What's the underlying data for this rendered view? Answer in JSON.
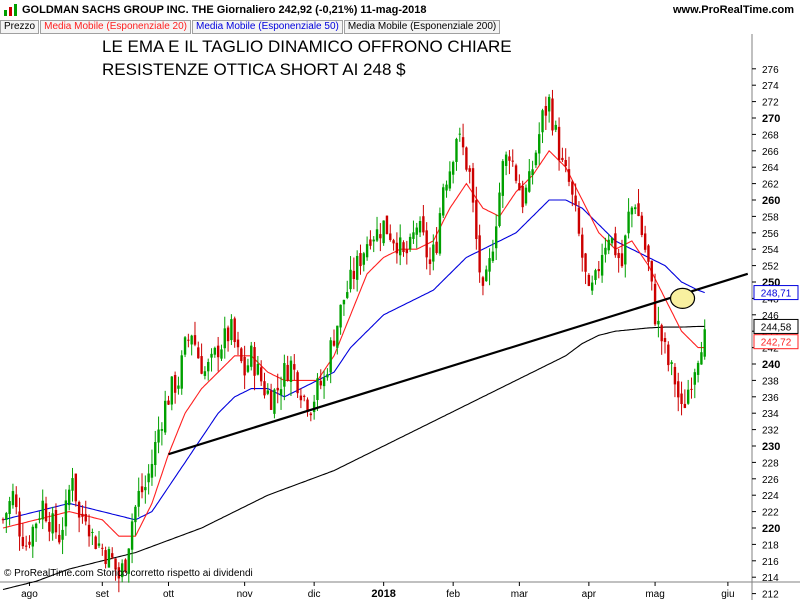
{
  "header": {
    "title": "GOLDMAN SACHS GROUP INC. THE   Giornaliero   242,92 (-0,21%)   11-mag-2018",
    "site": "www.ProRealTime.com"
  },
  "legend": {
    "price": "Prezzo",
    "ema20": "Media Mobile (Esponenziale 20)",
    "ema50": "Media Mobile (Esponenziale 50)",
    "ema200": "Media Mobile (Esponenziale 200)"
  },
  "annotation": {
    "line1": "LE EMA E  IL TAGLIO DINAMICO OFFRONO CHIARE",
    "line2": "RESISTENZE OTTICA SHORT AI 248 $"
  },
  "footer": "© ProRealTime.com  Storico corretto rispetto ai dividendi",
  "colors": {
    "up": "#00a000",
    "down": "#cc0000",
    "ema20": "#ff2020",
    "ema50": "#0000dd",
    "ema200": "#000000",
    "trendline": "#000000",
    "circle_fill": "#f8f0a0"
  },
  "chart_data": {
    "type": "candlestick",
    "y_range": [
      211,
      278
    ],
    "y_ticks": [
      212,
      214,
      216,
      218,
      220,
      222,
      224,
      226,
      228,
      230,
      232,
      234,
      236,
      238,
      240,
      242,
      244,
      246,
      248,
      250,
      252,
      254,
      256,
      258,
      260,
      262,
      264,
      266,
      268,
      270,
      272,
      274,
      276
    ],
    "y_ticks_bold": [
      220,
      230,
      240,
      250,
      260,
      270
    ],
    "x_ticks": [
      {
        "label": "ago",
        "day": 8,
        "bold": false
      },
      {
        "label": "set",
        "day": 30,
        "bold": false
      },
      {
        "label": "ott",
        "day": 50,
        "bold": false
      },
      {
        "label": "nov",
        "day": 73,
        "bold": false
      },
      {
        "label": "dic",
        "day": 94,
        "bold": false
      },
      {
        "label": "2018",
        "day": 115,
        "bold": true
      },
      {
        "label": "feb",
        "day": 136,
        "bold": false
      },
      {
        "label": "mar",
        "day": 156,
        "bold": false
      },
      {
        "label": "apr",
        "day": 177,
        "bold": false
      },
      {
        "label": "mag",
        "day": 197,
        "bold": false
      },
      {
        "label": "giu",
        "day": 219,
        "bold": false
      }
    ],
    "x_day_range": [
      0,
      225
    ],
    "price_keypoints": [
      [
        0,
        221
      ],
      [
        3,
        224
      ],
      [
        5,
        220
      ],
      [
        7,
        218
      ],
      [
        10,
        221
      ],
      [
        12,
        223
      ],
      [
        14,
        221
      ],
      [
        17,
        219
      ],
      [
        19,
        222
      ],
      [
        21,
        227
      ],
      [
        23,
        221
      ],
      [
        25,
        222
      ],
      [
        27,
        219
      ],
      [
        29,
        218
      ],
      [
        31,
        217
      ],
      [
        33,
        216
      ],
      [
        35,
        214
      ],
      [
        37,
        216
      ],
      [
        39,
        221
      ],
      [
        41,
        224
      ],
      [
        43,
        225
      ],
      [
        45,
        228
      ],
      [
        47,
        232
      ],
      [
        49,
        235
      ],
      [
        51,
        237
      ],
      [
        53,
        238
      ],
      [
        55,
        242
      ],
      [
        57,
        244
      ],
      [
        59,
        241
      ],
      [
        61,
        239
      ],
      [
        63,
        240
      ],
      [
        65,
        242
      ],
      [
        67,
        243
      ],
      [
        69,
        244
      ],
      [
        71,
        241
      ],
      [
        73,
        239
      ],
      [
        75,
        241
      ],
      [
        77,
        239
      ],
      [
        79,
        237
      ],
      [
        81,
        236
      ],
      [
        83,
        237
      ],
      [
        85,
        239
      ],
      [
        87,
        240
      ],
      [
        89,
        238
      ],
      [
        91,
        236
      ],
      [
        93,
        235
      ],
      [
        95,
        237
      ],
      [
        97,
        238
      ],
      [
        99,
        242
      ],
      [
        101,
        245
      ],
      [
        103,
        248
      ],
      [
        105,
        250
      ],
      [
        107,
        252
      ],
      [
        109,
        254
      ],
      [
        111,
        256
      ],
      [
        113,
        256
      ],
      [
        115,
        257
      ],
      [
        117,
        256
      ],
      [
        119,
        255
      ],
      [
        121,
        253
      ],
      [
        123,
        254
      ],
      [
        125,
        257
      ],
      [
        127,
        255
      ],
      [
        129,
        252
      ],
      [
        131,
        255
      ],
      [
        133,
        262
      ],
      [
        135,
        264
      ],
      [
        137,
        268
      ],
      [
        139,
        266
      ],
      [
        141,
        263
      ],
      [
        143,
        255
      ],
      [
        145,
        248
      ],
      [
        147,
        252
      ],
      [
        149,
        258
      ],
      [
        151,
        264
      ],
      [
        153,
        266
      ],
      [
        155,
        263
      ],
      [
        157,
        260
      ],
      [
        159,
        262
      ],
      [
        161,
        266
      ],
      [
        163,
        270
      ],
      [
        165,
        272
      ],
      [
        167,
        268
      ],
      [
        169,
        264
      ],
      [
        171,
        262
      ],
      [
        173,
        258
      ],
      [
        175,
        253
      ],
      [
        177,
        248
      ],
      [
        179,
        250
      ],
      [
        181,
        254
      ],
      [
        183,
        256
      ],
      [
        185,
        254
      ],
      [
        187,
        252
      ],
      [
        189,
        258
      ],
      [
        191,
        260
      ],
      [
        193,
        256
      ],
      [
        195,
        252
      ],
      [
        197,
        246
      ],
      [
        199,
        243
      ],
      [
        201,
        240
      ],
      [
        203,
        238
      ],
      [
        205,
        234
      ],
      [
        207,
        237
      ],
      [
        209,
        240
      ],
      [
        211,
        243
      ],
      [
        212,
        243
      ]
    ],
    "ema20_keypoints": [
      [
        0,
        220
      ],
      [
        10,
        221
      ],
      [
        20,
        222
      ],
      [
        30,
        221
      ],
      [
        35,
        219
      ],
      [
        40,
        219
      ],
      [
        45,
        223
      ],
      [
        50,
        229
      ],
      [
        55,
        234
      ],
      [
        60,
        237
      ],
      [
        65,
        239
      ],
      [
        70,
        241
      ],
      [
        75,
        241
      ],
      [
        80,
        239
      ],
      [
        85,
        238
      ],
      [
        90,
        238
      ],
      [
        95,
        238
      ],
      [
        100,
        241
      ],
      [
        105,
        246
      ],
      [
        110,
        251
      ],
      [
        115,
        253
      ],
      [
        120,
        254
      ],
      [
        125,
        254
      ],
      [
        130,
        255
      ],
      [
        135,
        259
      ],
      [
        140,
        262
      ],
      [
        145,
        259
      ],
      [
        150,
        258
      ],
      [
        155,
        261
      ],
      [
        160,
        263
      ],
      [
        165,
        266
      ],
      [
        170,
        264
      ],
      [
        175,
        260
      ],
      [
        180,
        256
      ],
      [
        185,
        254
      ],
      [
        190,
        255
      ],
      [
        195,
        252
      ],
      [
        200,
        248
      ],
      [
        205,
        244
      ],
      [
        210,
        242
      ],
      [
        212,
        242
      ]
    ],
    "ema50_keypoints": [
      [
        0,
        221
      ],
      [
        10,
        222
      ],
      [
        20,
        223
      ],
      [
        30,
        222
      ],
      [
        40,
        221
      ],
      [
        45,
        222
      ],
      [
        50,
        225
      ],
      [
        55,
        228
      ],
      [
        60,
        231
      ],
      [
        65,
        234
      ],
      [
        70,
        236
      ],
      [
        75,
        237
      ],
      [
        80,
        237
      ],
      [
        85,
        236
      ],
      [
        90,
        237
      ],
      [
        95,
        238
      ],
      [
        100,
        239
      ],
      [
        105,
        242
      ],
      [
        110,
        244
      ],
      [
        115,
        246
      ],
      [
        120,
        247
      ],
      [
        125,
        248
      ],
      [
        130,
        249
      ],
      [
        135,
        251
      ],
      [
        140,
        253
      ],
      [
        145,
        254
      ],
      [
        150,
        255
      ],
      [
        155,
        256
      ],
      [
        160,
        258
      ],
      [
        165,
        260
      ],
      [
        170,
        260
      ],
      [
        175,
        259
      ],
      [
        180,
        257
      ],
      [
        185,
        255
      ],
      [
        190,
        254
      ],
      [
        195,
        253
      ],
      [
        200,
        252
      ],
      [
        205,
        250
      ],
      [
        210,
        249
      ],
      [
        212,
        248.71
      ]
    ],
    "ema200_keypoints": [
      [
        0,
        212.5
      ],
      [
        10,
        213.5
      ],
      [
        20,
        215
      ],
      [
        30,
        216
      ],
      [
        40,
        217
      ],
      [
        50,
        218.5
      ],
      [
        60,
        220
      ],
      [
        70,
        222
      ],
      [
        80,
        224
      ],
      [
        90,
        225.5
      ],
      [
        100,
        227
      ],
      [
        110,
        229
      ],
      [
        120,
        231
      ],
      [
        130,
        233
      ],
      [
        140,
        235
      ],
      [
        150,
        237
      ],
      [
        160,
        239
      ],
      [
        170,
        241
      ],
      [
        175,
        242.5
      ],
      [
        180,
        243.5
      ],
      [
        185,
        244
      ],
      [
        190,
        244.2
      ],
      [
        195,
        244.4
      ],
      [
        200,
        244.5
      ],
      [
        205,
        244.5
      ],
      [
        210,
        244.58
      ],
      [
        212,
        244.58
      ]
    ],
    "trendline": {
      "start": [
        50,
        229
      ],
      "end": [
        225,
        251
      ]
    },
    "highlight_circle": {
      "day": 205,
      "price": 248
    },
    "last_values": [
      {
        "label": "248,71",
        "price": 248.71,
        "color": "#0000dd"
      },
      {
        "label": "244,58",
        "price": 244.58,
        "color": "#000000"
      },
      {
        "label": "242,72",
        "price": 242.72,
        "color": "#ff2020"
      }
    ]
  }
}
